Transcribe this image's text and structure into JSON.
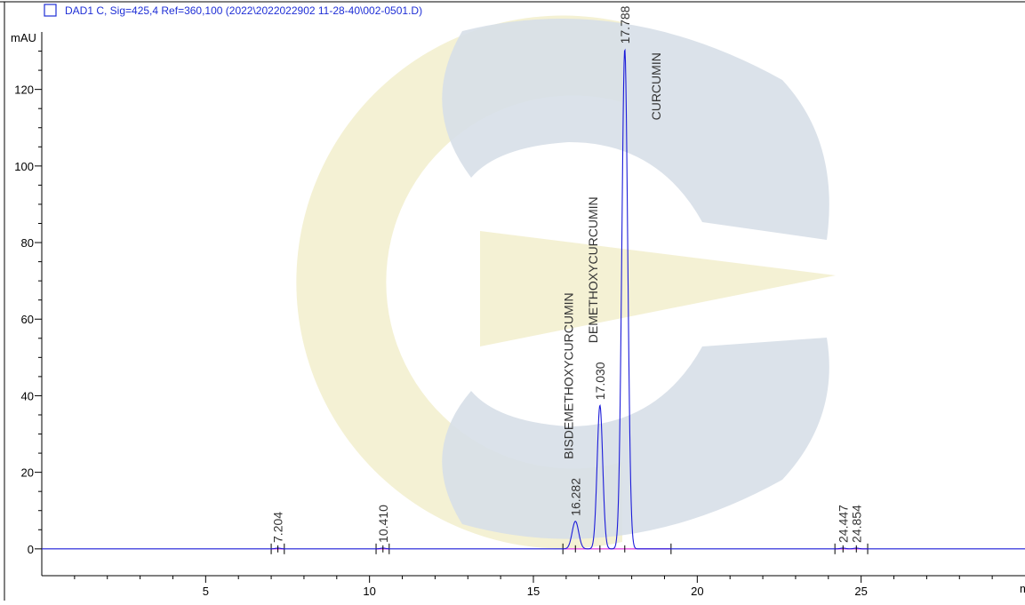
{
  "legend": {
    "text": "DAD1 C, Sig=425,4 Ref=360,100 (2022\\2022022902 11-28-40\\002-0501.D)"
  },
  "y_unit": "mAU",
  "x_unit": "min",
  "colors": {
    "trace": "#1c1cd9",
    "baseline": "#e04fe0",
    "legend": "#1f2fd6",
    "watermark_yellow": "#f3f0cf",
    "watermark_gray": "#d7dfe8"
  },
  "chart_data": {
    "type": "line",
    "xlim": [
      0,
      30
    ],
    "ylim": [
      -7,
      135
    ],
    "x_ticks": [
      5,
      10,
      15,
      20,
      25
    ],
    "x_tick_labels": [
      "5",
      "10",
      "15",
      "20",
      "25"
    ],
    "y_ticks": [
      0,
      20,
      40,
      60,
      80,
      100,
      120
    ],
    "y_tick_labels": [
      "0",
      "20",
      "40",
      "60",
      "80",
      "100",
      "120"
    ],
    "peaks": [
      {
        "rt": 7.204,
        "rt_label": "7.204",
        "height": 0.2,
        "width": 0.08,
        "name": ""
      },
      {
        "rt": 10.41,
        "rt_label": "10.410",
        "height": 0.2,
        "width": 0.08,
        "name": ""
      },
      {
        "rt": 16.282,
        "rt_label": "16.282",
        "height": 7.2,
        "width": 0.1,
        "name": "BISDEMETHOXYCURCUMIN"
      },
      {
        "rt": 17.03,
        "rt_label": "17.030",
        "height": 37.5,
        "width": 0.085,
        "name": "DEMETHOXYCURCUMIN"
      },
      {
        "rt": 17.788,
        "rt_label": "17.788",
        "height": 130.5,
        "width": 0.09,
        "name": "CURCUMIN"
      },
      {
        "rt": 24.447,
        "rt_label": "24.447",
        "height": 0.2,
        "width": 0.08,
        "name": ""
      },
      {
        "rt": 24.854,
        "rt_label": "24.854",
        "height": 0.2,
        "width": 0.08,
        "name": ""
      }
    ],
    "baseline_segments": [
      [
        7.0,
        7.4
      ],
      [
        10.2,
        10.6
      ],
      [
        15.9,
        19.2
      ],
      [
        24.2,
        25.2
      ]
    ],
    "grid": false
  }
}
